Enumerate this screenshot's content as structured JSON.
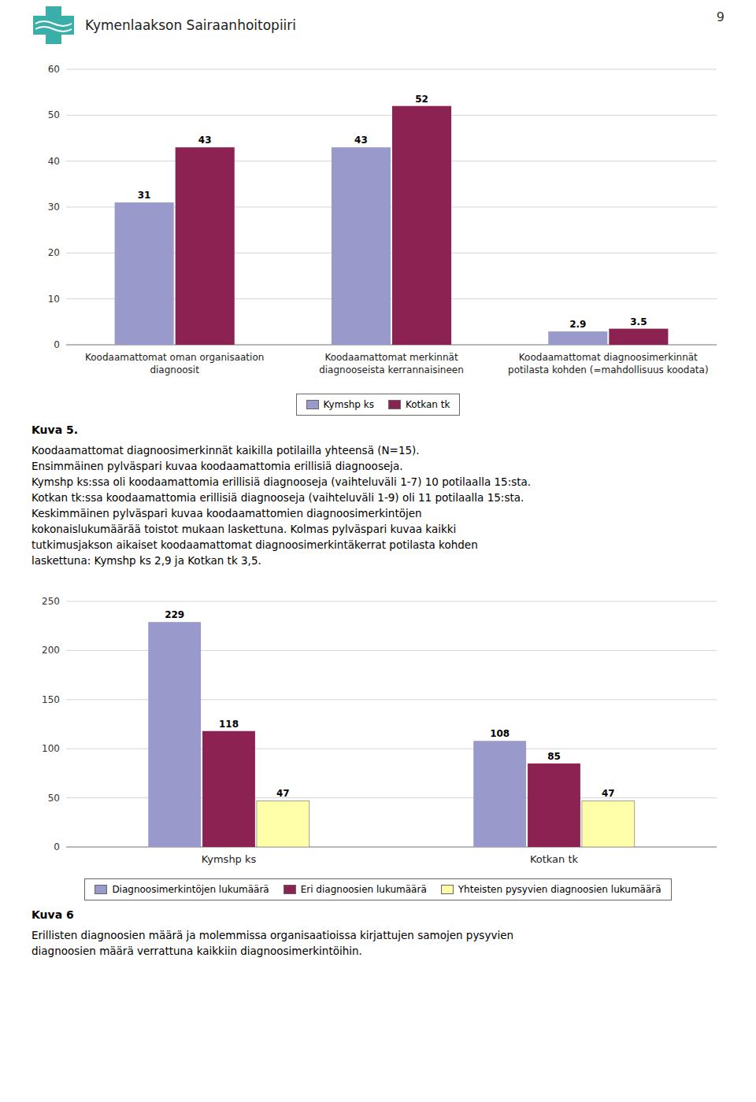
{
  "header": "Kymenlaakson Sairaanhoitopiiri",
  "page_number": "9",
  "logo_color": "#3AAFA9",
  "chart_data": [
    {
      "type": "bar",
      "title": "Kuva 5.",
      "annotations": [
        "Koodaamattomat diagnoosimerkinnät kaikilla potilailla yhteensä (N=15).",
        "Ensimmäinen pylväspari kuvaa koodaamattomia erillisiä diagnooseja.",
        "Kymshp ks:ssa oli koodaamattomia erillisiä diagnooseja (vaihteluväli 1-7) 10 potilaalla 15:sta.",
        "Kotkan tk:ssa koodaamattomia erillisiä diagnooseja (vaihteluväli 1-9) oli 11 potilaalla 15:sta.",
        "Keskimmäinen pylväspari kuvaa koodaamattomien diagnoosimerkintöjen",
        "kokonaislukumäärää toistot mukaan laskettuna. Kolmas pylväspari kuvaa kaikki",
        "tutkimusjakson aikaiset koodaamattomat diagnoosimerkintäkerrat potilasta kohden",
        "laskettuna: Kymshp ks 2,9 ja Kotkan tk 3,5."
      ],
      "categories": [
        "Koodaamattomat oman organisaation\ndiagnoosit",
        "Koodaamattomat merkinnät\ndiagnooseista kerrannaisineen",
        "Koodaamattomat diagnoosimerkinnät\npotilasta kohden (=mahdollisuus koodata)"
      ],
      "series": [
        {
          "name": "Kymshp ks",
          "color": "#9999CC",
          "values": [
            31,
            43,
            2.9
          ]
        },
        {
          "name": "Kotkan tk",
          "color": "#8B2252",
          "values": [
            43,
            52,
            3.5
          ]
        }
      ],
      "ylim": [
        0,
        60
      ],
      "yticks": [
        0,
        10,
        20,
        30,
        40,
        50,
        60
      ],
      "grid": true,
      "legend": "bottom",
      "data_labels": true
    },
    {
      "type": "bar",
      "title": "Kuva 6",
      "annotations": [
        "Erillisten diagnoosien määrä ja molemmissa organisaatioissa kirjattujen samojen pysyvien",
        "diagnoosien määrä verrattuna kaikkiin diagnoosimerkintöihin."
      ],
      "categories": [
        "Kymshp ks",
        "Kotkan tk"
      ],
      "series": [
        {
          "name": "Diagnoosimerkintöjen lukumäärä",
          "color": "#9999CC",
          "values": [
            229,
            108
          ]
        },
        {
          "name": "Eri diagnoosien lukumäärä",
          "color": "#8B2252",
          "values": [
            118,
            85
          ]
        },
        {
          "name": "Yhteisten pysyvien diagnoosien lukumäärä",
          "color": "#FFFFAA",
          "values": [
            47,
            47
          ]
        }
      ],
      "ylim": [
        0,
        250
      ],
      "yticks": [
        0,
        50,
        100,
        150,
        200,
        250
      ],
      "grid": true,
      "legend": "bottom",
      "data_labels": true
    }
  ]
}
